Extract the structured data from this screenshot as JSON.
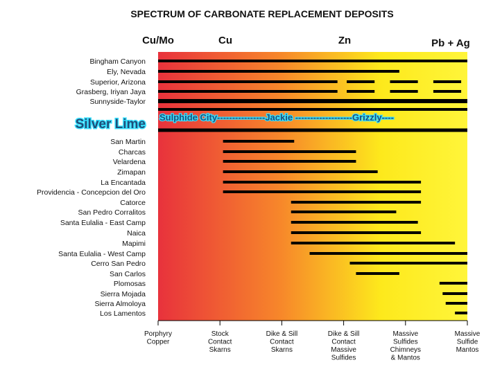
{
  "chart_data": {
    "type": "bar",
    "title": "SPECTRUM OF CARBONATE REPLACEMENT DEPOSITS",
    "zones": [
      "Cu/Mo",
      "Cu",
      "Zn",
      "Pb + Ag"
    ],
    "x_ticks": [
      [
        "Porphyry",
        "Copper"
      ],
      [
        "Stock",
        "Contact",
        "Skarns"
      ],
      [
        "Dike & Sill",
        "Contact",
        "Skarns"
      ],
      [
        "Dike & Sill",
        "Contact",
        "Massive",
        "Sulfides"
      ],
      [
        "Massive",
        "Sulfides",
        "Chimneys",
        "& Mantos"
      ],
      [
        "Massive",
        "Sulfide",
        "Mantos"
      ]
    ],
    "xlim": [
      0,
      5
    ],
    "grid": false,
    "gradient_colors": [
      "#e8323c",
      "#f7882a",
      "#fde91c",
      "#fff53a"
    ],
    "bar_color": "#000000",
    "rows": [
      {
        "label": "Bingham Canyon",
        "segments": [
          [
            0.0,
            5.0
          ]
        ]
      },
      {
        "label": "Ely, Nevada",
        "segments": [
          [
            0.0,
            3.9
          ]
        ]
      },
      {
        "label": "Superior, Arizona",
        "segments": [
          [
            0.0,
            2.9
          ],
          [
            3.05,
            3.5
          ],
          [
            3.75,
            4.2
          ],
          [
            4.45,
            4.9
          ]
        ]
      },
      {
        "label": "Grasberg, Iriyan Jaya",
        "segments": [
          [
            0.0,
            2.9
          ],
          [
            3.05,
            3.5
          ],
          [
            3.75,
            4.2
          ],
          [
            4.45,
            4.9
          ]
        ]
      },
      {
        "label": "Sunnyside-Taylor",
        "segments": [
          [
            0.0,
            5.0
          ]
        ],
        "weight": "heavy"
      },
      {
        "label": "San Martin",
        "segments": [
          [
            1.05,
            2.2
          ]
        ]
      },
      {
        "label": "Charcas",
        "segments": [
          [
            1.05,
            3.2
          ]
        ]
      },
      {
        "label": "Velardena",
        "segments": [
          [
            1.05,
            3.2
          ]
        ]
      },
      {
        "label": "Zimapan",
        "segments": [
          [
            1.05,
            3.55
          ]
        ]
      },
      {
        "label": "La Encantada",
        "segments": [
          [
            1.05,
            4.25
          ]
        ]
      },
      {
        "label": "Providencia - Concepcion del Oro",
        "segments": [
          [
            1.05,
            4.25
          ]
        ]
      },
      {
        "label": "Catorce",
        "segments": [
          [
            2.15,
            4.25
          ]
        ]
      },
      {
        "label": "San Pedro Corralitos",
        "segments": [
          [
            2.15,
            3.85
          ]
        ]
      },
      {
        "label": "Santa Eulalia - East Camp",
        "segments": [
          [
            2.15,
            4.2
          ]
        ]
      },
      {
        "label": "Naica",
        "segments": [
          [
            2.15,
            4.25
          ]
        ]
      },
      {
        "label": "Mapimi",
        "segments": [
          [
            2.15,
            4.8
          ]
        ]
      },
      {
        "label": "Santa Eulalia - West Camp",
        "segments": [
          [
            2.45,
            5.0
          ]
        ]
      },
      {
        "label": "Cerro San Pedro",
        "segments": [
          [
            3.1,
            5.0
          ]
        ]
      },
      {
        "label": "San Carlos",
        "segments": [
          [
            3.2,
            3.9
          ]
        ]
      },
      {
        "label": "Plomosas",
        "segments": [
          [
            4.55,
            5.0
          ]
        ]
      },
      {
        "label": "Sierra Mojada",
        "segments": [
          [
            4.6,
            5.0
          ]
        ]
      },
      {
        "label": "Sierra Almoloya",
        "segments": [
          [
            4.65,
            5.0
          ]
        ]
      },
      {
        "label": "Los Lamentos",
        "segments": [
          [
            4.8,
            5.0
          ]
        ]
      }
    ],
    "highlight_band": {
      "label": "Silver Lime",
      "text": "Sulphide City----------------Jackie -------------------Grizzly----"
    }
  }
}
